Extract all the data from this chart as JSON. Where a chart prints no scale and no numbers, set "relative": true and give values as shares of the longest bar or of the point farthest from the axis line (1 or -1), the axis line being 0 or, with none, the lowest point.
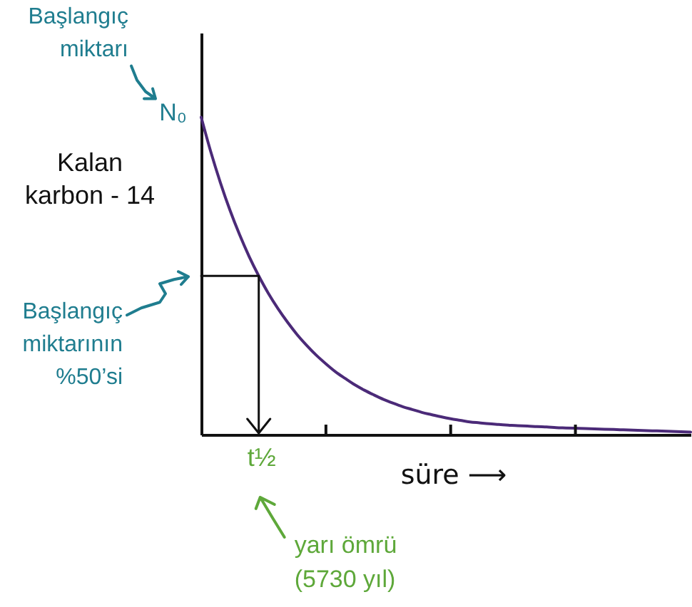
{
  "chart_data": {
    "type": "line",
    "relative": true,
    "xlabel": "süre ⟶",
    "ylabel": "Kalan karbon - 14",
    "categories": [
      null,
      null,
      null,
      null,
      null,
      null,
      null,
      null,
      null,
      null,
      null,
      null,
      null,
      null,
      null,
      null,
      null,
      null,
      null,
      null,
      null,
      null,
      null,
      null,
      null,
      null,
      null,
      null,
      null,
      null,
      null,
      null,
      null,
      null,
      null,
      null,
      null,
      null,
      null,
      null,
      null,
      null,
      null,
      null,
      null,
      null,
      null,
      null,
      null,
      null,
      null,
      null
    ],
    "series": [
      {
        "color": "#4b2a78",
        "values": [
          1,
          0.891,
          0.794,
          0.707,
          0.63,
          0.561,
          0.5,
          0.445,
          0.397,
          0.354,
          0.315,
          0.281,
          0.25,
          0.223,
          0.198,
          0.177,
          0.157,
          0.14,
          0.125,
          0.111,
          0.099,
          0.088,
          0.079,
          0.07,
          0.063,
          0.056,
          0.05,
          0.045,
          0.04,
          0.037,
          0.034,
          0.032,
          0.03,
          0.028,
          0.027,
          0.025,
          0.024,
          0.022,
          0.021,
          0.02,
          0.019,
          0.018,
          0.017,
          0.016,
          0.015,
          0.014,
          0.013,
          0.012,
          0.011,
          0.01,
          0.009,
          0.008
        ]
      }
    ],
    "ref_lines": [
      {
        "axis": "y",
        "value": 0.5,
        "color": "#111111"
      }
    ],
    "annotations": [
      "Başlangıç miktarı",
      "N₀",
      "Başlangıç miktarının %50’si",
      "t½",
      "yarı ömrü (5730 yıl)"
    ]
  }
}
